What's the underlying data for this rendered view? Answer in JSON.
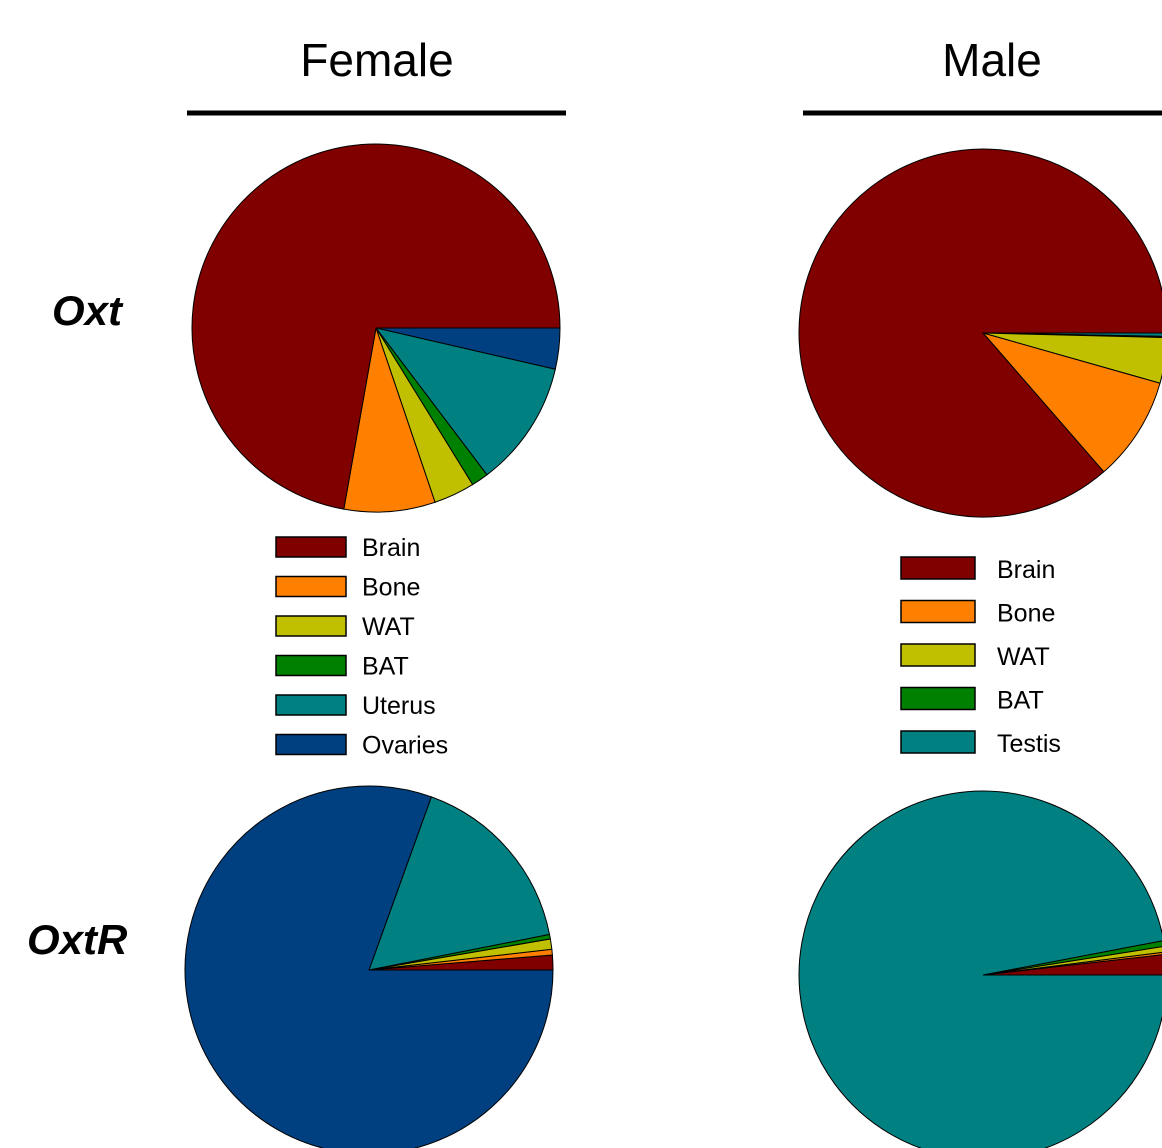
{
  "columns": [
    "Female",
    "Male"
  ],
  "rows": [
    "Oxt",
    "OxtR"
  ],
  "colors": {
    "Brain": "#800000",
    "Bone": "#ff8000",
    "WAT": "#c0c000",
    "BAT": "#008000",
    "Uterus": "#008080",
    "Ovaries": "#004080",
    "Testis": "#008080"
  },
  "legends": {
    "female": [
      "Brain",
      "Bone",
      "WAT",
      "BAT",
      "Uterus",
      "Ovaries"
    ],
    "male": [
      "Brain",
      "Bone",
      "WAT",
      "BAT",
      "Testis"
    ]
  },
  "chart_data": [
    {
      "type": "pie",
      "panel": "Oxt",
      "sex": "Female",
      "labels": [
        "Ovaries",
        "Uterus",
        "BAT",
        "WAT",
        "Bone",
        "Brain"
      ],
      "values": [
        3.6,
        11.1,
        1.5,
        3.6,
        8.0,
        72.2
      ],
      "order": "clockwise from 3 o'clock"
    },
    {
      "type": "pie",
      "panel": "Oxt",
      "sex": "Male",
      "labels": [
        "Testis",
        "BAT",
        "WAT",
        "Bone",
        "Brain"
      ],
      "values": [
        0.3,
        0.1,
        4.0,
        9.2,
        86.4
      ],
      "order": "clockwise from 3 o'clock"
    },
    {
      "type": "pie",
      "panel": "OxtR",
      "sex": "Female",
      "labels": [
        "Brain",
        "Bone",
        "WAT",
        "BAT",
        "Uterus",
        "Ovaries"
      ],
      "values": [
        1.3,
        0.5,
        0.9,
        0.4,
        16.4,
        80.5
      ],
      "order": "counterclockwise from 3 o'clock"
    },
    {
      "type": "pie",
      "panel": "OxtR",
      "sex": "Male",
      "labels": [
        "Brain",
        "Bone",
        "WAT",
        "BAT",
        "Testis"
      ],
      "values": [
        1.8,
        0.2,
        0.5,
        0.5,
        97.0
      ],
      "order": "counterclockwise from 3 o'clock"
    }
  ]
}
